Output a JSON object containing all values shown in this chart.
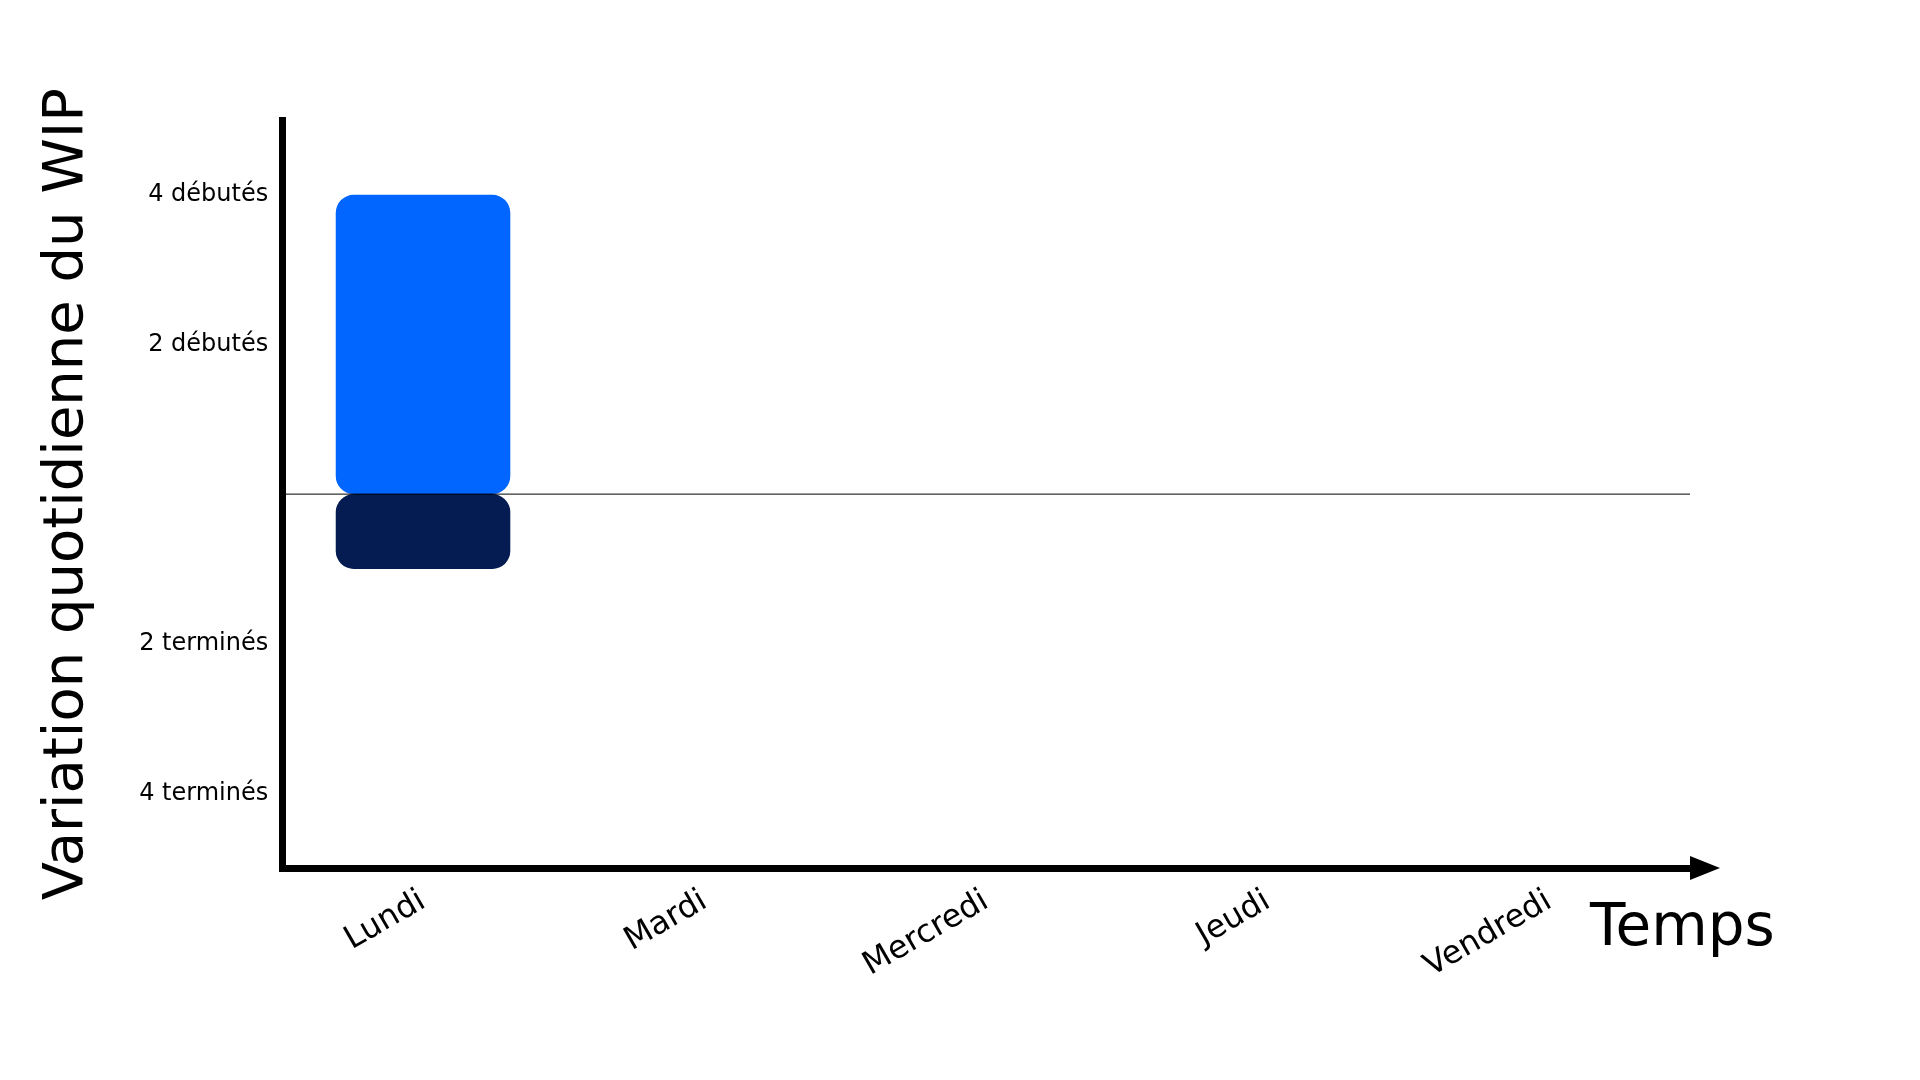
{
  "chart_data": {
    "type": "bar",
    "stacked": true,
    "xlabel": "Temps",
    "ylabel": "Variation quotidienne du WIP",
    "categories": [
      "Lundi",
      "Mardi",
      "Mercredi",
      "Jeudi",
      "Vendredi"
    ],
    "series": [
      {
        "color": "#0066ff",
        "values": [
          4,
          null,
          null,
          null,
          null
        ]
      },
      {
        "color": "#041c52",
        "values": [
          -1,
          null,
          null,
          null,
          null
        ]
      }
    ],
    "ylim": [
      -5,
      5
    ],
    "yticks": [
      {
        "value": 4,
        "label": "4 débutés"
      },
      {
        "value": 2,
        "label": "2 débutés"
      },
      {
        "value": -2,
        "label": "2 terminés"
      },
      {
        "value": -4,
        "label": "4 terminés"
      }
    ],
    "ref_lines": [
      {
        "axis": "y",
        "value": 0,
        "color": "#000000"
      }
    ],
    "grid": false,
    "legend": false
  }
}
